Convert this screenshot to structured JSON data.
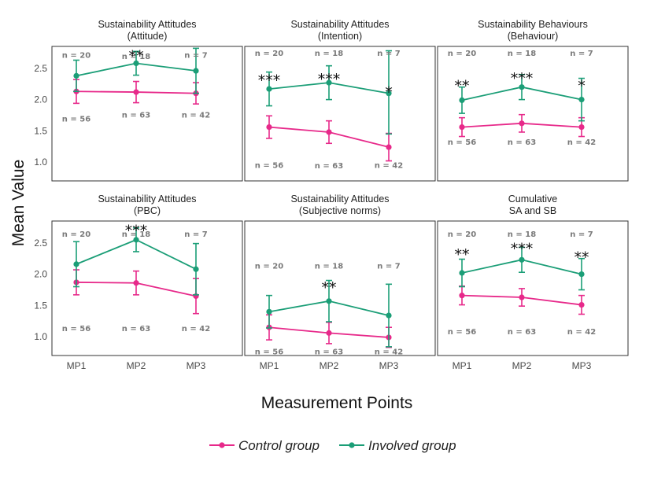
{
  "chart_data": {
    "type": "line",
    "ylabel": "Mean Value",
    "xlabel": "Measurement Points",
    "categories": [
      "MP1",
      "MP2",
      "MP3"
    ],
    "ylim": [
      0.7,
      2.85
    ],
    "yticks": [
      1.0,
      1.5,
      2.0,
      2.5
    ],
    "grid": false,
    "legend_placement": "bottom",
    "legend": [
      {
        "name": "Control group",
        "color": "#e7298a"
      },
      {
        "name": "Involved group",
        "color": "#1b9e77"
      }
    ],
    "panels": [
      {
        "title_line1": "Sustainability Attitudes",
        "title_line2": "(Attitude)",
        "series": [
          {
            "name": "Control group",
            "values": [
              2.13,
              2.12,
              2.1
            ],
            "lower": [
              1.94,
              1.95,
              1.93
            ],
            "upper": [
              2.32,
              2.29,
              2.27
            ]
          },
          {
            "name": "Involved group",
            "values": [
              2.38,
              2.58,
              2.46
            ],
            "lower": [
              2.13,
              2.39,
              2.1
            ],
            "upper": [
              2.63,
              2.77,
              2.82
            ]
          }
        ],
        "n_involved": [
          "n = 20",
          "n = 18",
          "n = 7"
        ],
        "n_involved_y": [
          2.72,
          2.7,
          2.72
        ],
        "n_control": [
          "n = 56",
          "n = 63",
          "n = 42"
        ],
        "n_control_y": [
          1.7,
          1.76,
          1.76
        ],
        "stars": [
          "",
          "**",
          ""
        ],
        "stars_y": [
          2.7,
          2.73,
          2.7
        ]
      },
      {
        "title_line1": "Sustainability Attitudes",
        "title_line2": "(Intention)",
        "series": [
          {
            "name": "Control group",
            "values": [
              1.56,
              1.48,
              1.24
            ],
            "lower": [
              1.38,
              1.3,
              1.02
            ],
            "upper": [
              1.74,
              1.66,
              1.46
            ]
          },
          {
            "name": "Involved group",
            "values": [
              2.17,
              2.27,
              2.1
            ],
            "lower": [
              1.9,
              2.0,
              1.45
            ],
            "upper": [
              2.44,
              2.54,
              2.78
            ]
          }
        ],
        "n_involved": [
          "n = 20",
          "n = 18",
          "n = 7"
        ],
        "n_involved_y": [
          2.75,
          2.75,
          2.75
        ],
        "n_control": [
          "n = 56",
          "n = 63",
          "n = 42"
        ],
        "n_control_y": [
          0.96,
          0.95,
          0.96
        ],
        "stars": [
          "***",
          "***",
          "*"
        ],
        "stars_y": [
          2.34,
          2.36,
          2.15
        ]
      },
      {
        "title_line1": "Sustainability Behaviours",
        "title_line2": "(Behaviour)",
        "series": [
          {
            "name": "Control group",
            "values": [
              1.56,
              1.62,
              1.56
            ],
            "lower": [
              1.41,
              1.48,
              1.41
            ],
            "upper": [
              1.71,
              1.76,
              1.71
            ]
          },
          {
            "name": "Involved group",
            "values": [
              1.99,
              2.2,
              2.0
            ],
            "lower": [
              1.78,
              2.0,
              1.66
            ],
            "upper": [
              2.2,
              2.4,
              2.34
            ]
          }
        ],
        "n_involved": [
          "n = 20",
          "n = 18",
          "n = 7"
        ],
        "n_involved_y": [
          2.75,
          2.75,
          2.75
        ],
        "n_control": [
          "n = 56",
          "n = 63",
          "n = 42"
        ],
        "n_control_y": [
          1.33,
          1.33,
          1.33
        ],
        "stars": [
          "**",
          "***",
          "*"
        ],
        "stars_y": [
          2.25,
          2.37,
          2.25
        ]
      },
      {
        "title_line1": "Sustainability Attitudes",
        "title_line2": "(PBC)",
        "series": [
          {
            "name": "Control group",
            "values": [
              1.87,
              1.86,
              1.65
            ],
            "lower": [
              1.67,
              1.67,
              1.37
            ],
            "upper": [
              2.07,
              2.05,
              1.93
            ]
          },
          {
            "name": "Involved group",
            "values": [
              2.16,
              2.55,
              2.08
            ],
            "lower": [
              1.8,
              2.36,
              1.67
            ],
            "upper": [
              2.52,
              2.74,
              2.49
            ]
          }
        ],
        "n_involved": [
          "n = 20",
          "n = 18",
          "n = 7"
        ],
        "n_involved_y": [
          2.65,
          2.65,
          2.65
        ],
        "n_control": [
          "n = 56",
          "n = 63",
          "n = 42"
        ],
        "n_control_y": [
          1.14,
          1.14,
          1.14
        ],
        "stars": [
          "",
          "***",
          ""
        ],
        "stars_y": [
          2.7,
          2.73,
          2.7
        ]
      },
      {
        "title_line1": "Sustainability Attitudes",
        "title_line2": "(Subjective norms)",
        "series": [
          {
            "name": "Control group",
            "values": [
              1.15,
              1.06,
              0.99
            ],
            "lower": [
              0.95,
              0.89,
              0.83
            ],
            "upper": [
              1.35,
              1.23,
              1.15
            ]
          },
          {
            "name": "Involved group",
            "values": [
              1.4,
              1.57,
              1.34
            ],
            "lower": [
              1.14,
              1.24,
              0.84
            ],
            "upper": [
              1.66,
              1.9,
              1.84
            ]
          }
        ],
        "n_involved": [
          "n = 20",
          "n = 18",
          "n = 7"
        ],
        "n_involved_y": [
          2.14,
          2.14,
          2.14
        ],
        "n_control": [
          "n = 56",
          "n = 63",
          "n = 42"
        ],
        "n_control_y": [
          0.77,
          0.77,
          0.77
        ],
        "stars": [
          "",
          "**",
          ""
        ],
        "stars_y": [
          1.8,
          1.82,
          1.8
        ]
      },
      {
        "title_line1": "Cumulative",
        "title_line2": "SA and SB",
        "series": [
          {
            "name": "Control group",
            "values": [
              1.66,
              1.63,
              1.51
            ],
            "lower": [
              1.51,
              1.49,
              1.36
            ],
            "upper": [
              1.81,
              1.77,
              1.66
            ]
          },
          {
            "name": "Involved group",
            "values": [
              2.02,
              2.23,
              2.0
            ],
            "lower": [
              1.8,
              2.03,
              1.75
            ],
            "upper": [
              2.24,
              2.43,
              2.25
            ]
          }
        ],
        "n_involved": [
          "n = 20",
          "n = 18",
          "n = 7"
        ],
        "n_involved_y": [
          2.65,
          2.65,
          2.65
        ],
        "n_control": [
          "n = 56",
          "n = 63",
          "n = 42"
        ],
        "n_control_y": [
          1.09,
          1.09,
          1.09
        ],
        "stars": [
          "**",
          "***",
          "**"
        ],
        "stars_y": [
          2.35,
          2.44,
          2.3
        ]
      }
    ]
  }
}
